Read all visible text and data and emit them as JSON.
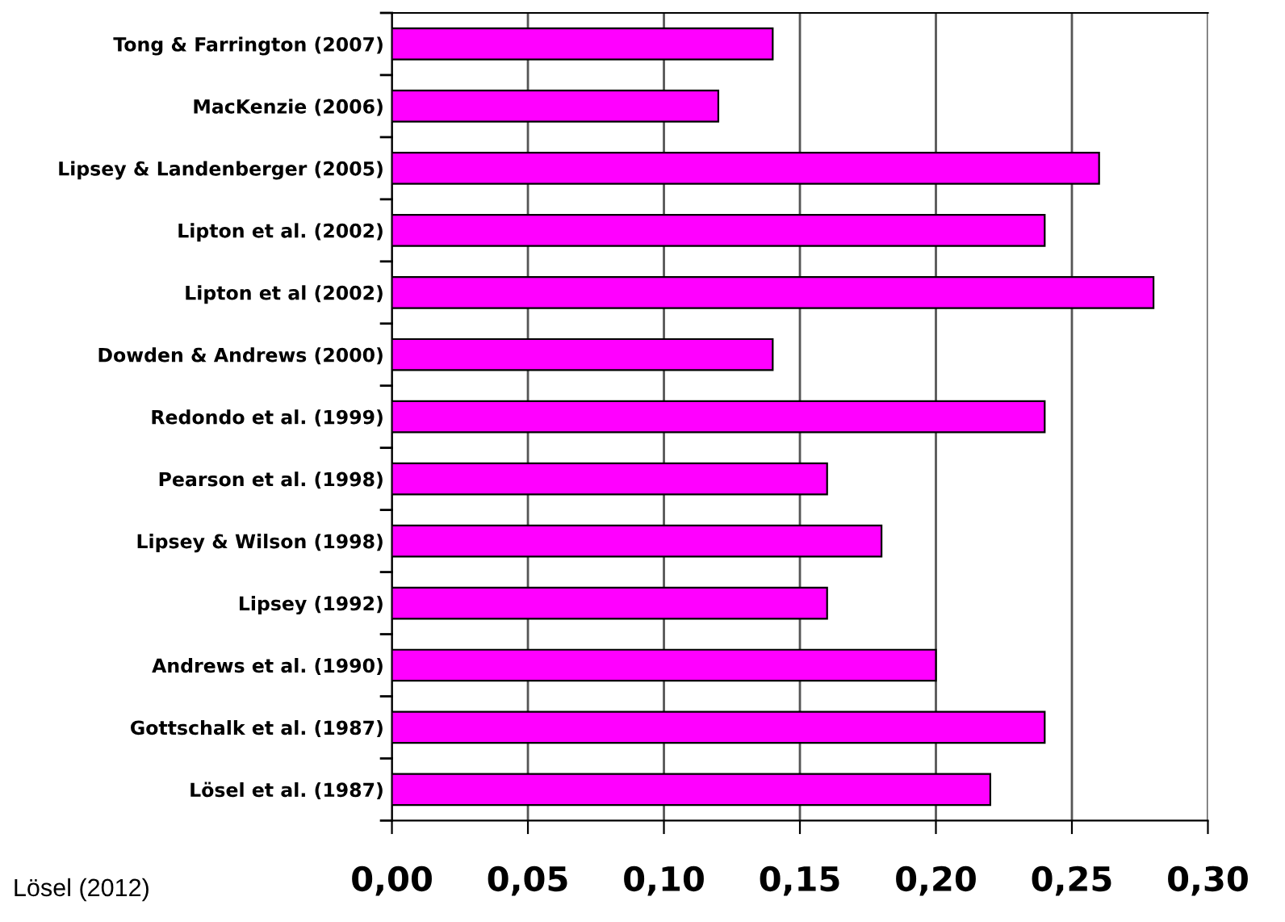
{
  "chart_data": {
    "type": "bar",
    "orientation": "horizontal",
    "categories": [
      "Tong & Farrington (2007)",
      "MacKenzie (2006)",
      "Lipsey & Landenberger (2005)",
      "Lipton et al. (2002)",
      "Lipton et al (2002)",
      "Dowden & Andrews (2000)",
      "Redondo et al. (1999)",
      "Pearson et al. (1998)",
      "Lipsey & Wilson (1998)",
      "Lipsey (1992)",
      "Andrews et al. (1990)",
      "Gottschalk et al. (1987)",
      "Lösel et al. (1987)"
    ],
    "values": [
      0.14,
      0.12,
      0.26,
      0.24,
      0.28,
      0.14,
      0.24,
      0.16,
      0.18,
      0.16,
      0.2,
      0.24,
      0.22
    ],
    "color": "#ff00ff",
    "xlim": [
      0,
      0.3
    ],
    "xticks": [
      {
        "value": 0,
        "label": "0,00"
      },
      {
        "value": 0.05,
        "label": "0,05"
      },
      {
        "value": 0.1,
        "label": "0,10"
      },
      {
        "value": 0.15,
        "label": "0,15"
      },
      {
        "value": 0.2,
        "label": "0,20"
      },
      {
        "value": 0.25,
        "label": "0,25"
      },
      {
        "value": 0.3,
        "label": "0,30"
      }
    ],
    "grid": "x",
    "annotations": [
      "Lösel (2012)"
    ]
  }
}
